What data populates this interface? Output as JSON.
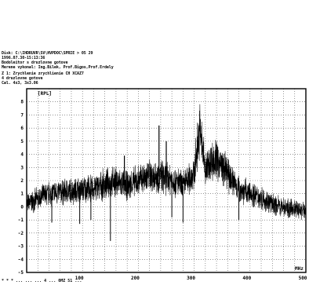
{
  "header": {
    "line1": "Disk: C:\\IHDRUVR\\SV\\HVPDOC\\SPRIE > 05 29",
    "line2": "1996.07.30-15:13:36",
    "line3": "Bodoleitor s druzlovne gotove",
    "line4": "Merene vykonal: Ing.Bilek, Prof.Bigos,Prof.Erdely",
    "line5": "Z 1: Zrychlenie zrychlienie CH XCAZ7",
    "line6": "4 druzlovne gotove",
    "line7": "Cal. 4x3, 3x3.06"
  },
  "footer": {
    "text": "* * * ... ... ... 4 ... 0MZ 51 ..."
  },
  "chart_data": {
    "type": "line",
    "title": "",
    "xlabel": "",
    "ylabel": "",
    "y_unit": "[RPL]",
    "x_unit": "MHz",
    "xlim": [
      0,
      500
    ],
    "ylim": [
      -5,
      9
    ],
    "x_ticks": [
      100,
      200,
      300,
      400,
      500
    ],
    "y_ticks": [
      8,
      7,
      6,
      5,
      4,
      3,
      2,
      1,
      0,
      -1,
      -2,
      -3,
      -4,
      -5
    ],
    "grid": true,
    "series": [
      {
        "x": [
          0,
          20,
          40,
          60,
          80,
          100,
          120,
          140,
          160,
          180,
          200,
          220,
          240,
          260,
          280,
          300,
          310,
          320,
          330,
          340,
          360,
          380,
          400,
          420,
          440,
          460,
          480,
          500
        ],
        "y": [
          0.2,
          0.6,
          1.0,
          1.1,
          1.2,
          1.3,
          1.4,
          1.7,
          1.9,
          1.6,
          2.0,
          2.4,
          2.3,
          2.1,
          1.6,
          2.6,
          6.0,
          2.8,
          3.5,
          3.6,
          2.5,
          1.4,
          1.0,
          0.7,
          0.2,
          0.0,
          -0.2,
          -0.3
        ]
      }
    ],
    "spikes": [
      {
        "x": 237,
        "y": 6.2
      },
      {
        "x": 250,
        "y": 5.0
      },
      {
        "x": 175,
        "y": 3.9
      }
    ],
    "dips": [
      {
        "x": 45,
        "y": -1.2
      },
      {
        "x": 95,
        "y": -1.3
      },
      {
        "x": 115,
        "y": -1.0
      },
      {
        "x": 150,
        "y": -2.6
      },
      {
        "x": 260,
        "y": -0.8
      },
      {
        "x": 280,
        "y": -1.2
      },
      {
        "x": 380,
        "y": -1.0
      }
    ]
  }
}
